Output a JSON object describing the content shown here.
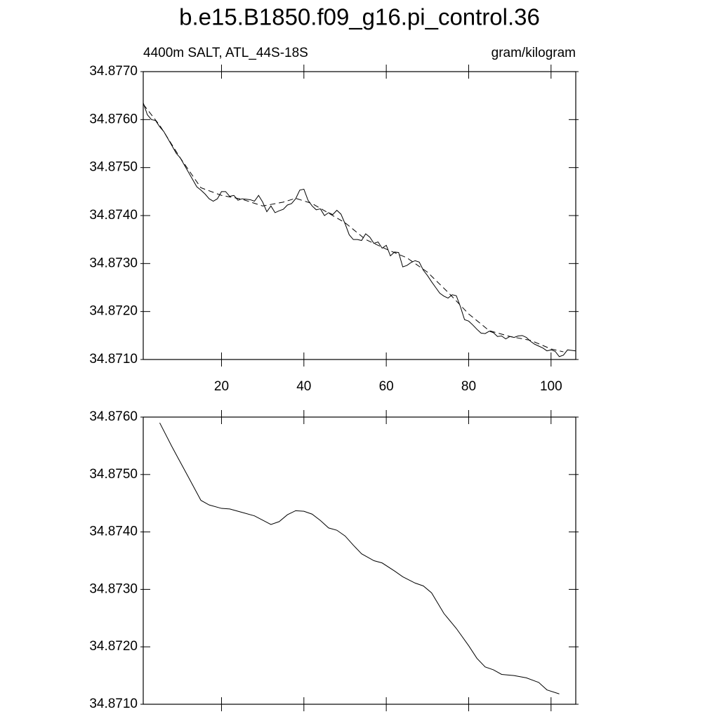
{
  "chart_data": [
    {
      "type": "line",
      "title": "b.e15.B1850.f09_g16.pi_control.36",
      "subtitle_left": "4400m SALT, ATL_44S-18S",
      "subtitle_right": "gram/kilogram",
      "xlim": [
        1,
        106
      ],
      "ylim": [
        34.871,
        34.877
      ],
      "xticks": [
        20,
        40,
        60,
        80,
        100
      ],
      "yticks": [
        {
          "value": 34.871,
          "label": "34.8710"
        },
        {
          "value": 34.872,
          "label": "34.8720"
        },
        {
          "value": 34.873,
          "label": "34.8730"
        },
        {
          "value": 34.874,
          "label": "34.8740"
        },
        {
          "value": 34.875,
          "label": "34.8750"
        },
        {
          "value": 34.876,
          "label": "34.8760"
        },
        {
          "value": 34.877,
          "label": "34.8770"
        }
      ],
      "x": [
        1,
        2,
        3,
        4,
        5,
        6,
        7,
        8,
        9,
        10,
        11,
        12,
        13,
        14,
        15,
        16,
        17,
        18,
        19,
        20,
        21,
        22,
        23,
        24,
        25,
        26,
        27,
        28,
        29,
        30,
        31,
        32,
        33,
        34,
        35,
        36,
        37,
        38,
        39,
        40,
        41,
        42,
        43,
        44,
        45,
        46,
        47,
        48,
        49,
        50,
        51,
        52,
        53,
        54,
        55,
        56,
        57,
        58,
        59,
        60,
        61,
        62,
        63,
        64,
        65,
        66,
        67,
        68,
        69,
        70,
        71,
        72,
        73,
        74,
        75,
        76,
        77,
        78,
        79,
        80,
        81,
        82,
        83,
        84,
        85,
        86,
        87,
        88,
        89,
        90,
        91,
        92,
        93,
        94,
        95,
        96,
        97,
        98,
        99,
        100,
        101,
        102,
        103,
        104,
        105,
        106
      ],
      "series": [
        {
          "color": "#000000",
          "dash": false,
          "values": [
            34.87635,
            34.8761,
            34.876,
            34.87598,
            34.87585,
            34.87575,
            34.8756,
            34.87545,
            34.8753,
            34.8752,
            34.87505,
            34.8749,
            34.87475,
            34.8746,
            34.87453,
            34.87445,
            34.87435,
            34.8743,
            34.87435,
            34.8745,
            34.8745,
            34.8744,
            34.87442,
            34.87432,
            34.87435,
            34.87434,
            34.87433,
            34.8743,
            34.87442,
            34.87428,
            34.87408,
            34.8742,
            34.87406,
            34.8741,
            34.87413,
            34.87422,
            34.87425,
            34.87435,
            34.87453,
            34.87455,
            34.87432,
            34.8742,
            34.87412,
            34.87414,
            34.874,
            34.87406,
            34.87402,
            34.87411,
            34.87403,
            34.87383,
            34.8736,
            34.8735,
            34.8735,
            34.87348,
            34.87362,
            34.87355,
            34.87342,
            34.87345,
            34.87332,
            34.87338,
            34.87316,
            34.87324,
            34.87323,
            34.87293,
            34.87296,
            34.87302,
            34.87306,
            34.87303,
            34.87286,
            34.87275,
            34.87262,
            34.8725,
            34.87238,
            34.87232,
            34.87228,
            34.87235,
            34.87233,
            34.8721,
            34.87183,
            34.8718,
            34.87172,
            34.87163,
            34.87155,
            34.87154,
            34.87159,
            34.87156,
            34.87148,
            34.87149,
            34.87143,
            34.87148,
            34.87146,
            34.87149,
            34.8715,
            34.87146,
            34.87138,
            34.87132,
            34.87128,
            34.87124,
            34.87118,
            34.8712,
            34.87117,
            34.87106,
            34.87109,
            34.8712,
            34.87119,
            34.87118
          ]
        },
        {
          "color": "#000000",
          "dash": true,
          "x": [
            1,
            5,
            10,
            15,
            20,
            25,
            30,
            35,
            38,
            42,
            46,
            50,
            55,
            60,
            65,
            70,
            75,
            80,
            85,
            90,
            95,
            100,
            103
          ],
          "values": [
            34.87632,
            34.87588,
            34.8752,
            34.87458,
            34.87442,
            34.87434,
            34.8742,
            34.87428,
            34.87436,
            34.87425,
            34.87405,
            34.87385,
            34.8735,
            34.8733,
            34.87312,
            34.87282,
            34.8724,
            34.87195,
            34.8716,
            34.87148,
            34.8714,
            34.87122,
            34.87116
          ]
        }
      ]
    },
    {
      "type": "line",
      "xlim": [
        1,
        106
      ],
      "ylim": [
        34.871,
        34.876
      ],
      "xticks": [
        20,
        40,
        60,
        80,
        100
      ],
      "yticks": [
        {
          "value": 34.871,
          "label": "34.8710"
        },
        {
          "value": 34.872,
          "label": "34.8720"
        },
        {
          "value": 34.873,
          "label": "34.8730"
        },
        {
          "value": 34.874,
          "label": "34.8740"
        },
        {
          "value": 34.875,
          "label": "34.8750"
        },
        {
          "value": 34.876,
          "label": "34.8760"
        }
      ],
      "x": [
        5,
        8,
        12,
        15,
        17,
        20,
        22,
        25,
        28,
        32,
        34,
        36,
        38,
        40,
        42,
        44,
        46,
        48,
        50,
        52,
        54,
        57,
        59,
        62,
        64,
        67,
        69,
        71,
        74,
        77,
        80,
        82,
        84,
        86,
        88,
        91,
        94,
        97,
        99,
        102
      ],
      "series": [
        {
          "color": "#000000",
          "dash": false,
          "values": [
            34.8759,
            34.87548,
            34.87495,
            34.87455,
            34.87447,
            34.87441,
            34.8744,
            34.87434,
            34.87428,
            34.87413,
            34.87418,
            34.8743,
            34.87437,
            34.87436,
            34.87431,
            34.8742,
            34.87407,
            34.87403,
            34.87393,
            34.87377,
            34.87362,
            34.8735,
            34.87346,
            34.87332,
            34.87322,
            34.87311,
            34.87306,
            34.87294,
            34.87258,
            34.87232,
            34.87202,
            34.8718,
            34.87165,
            34.8716,
            34.87152,
            34.8715,
            34.87146,
            34.87138,
            34.87125,
            34.87118
          ]
        }
      ]
    }
  ]
}
